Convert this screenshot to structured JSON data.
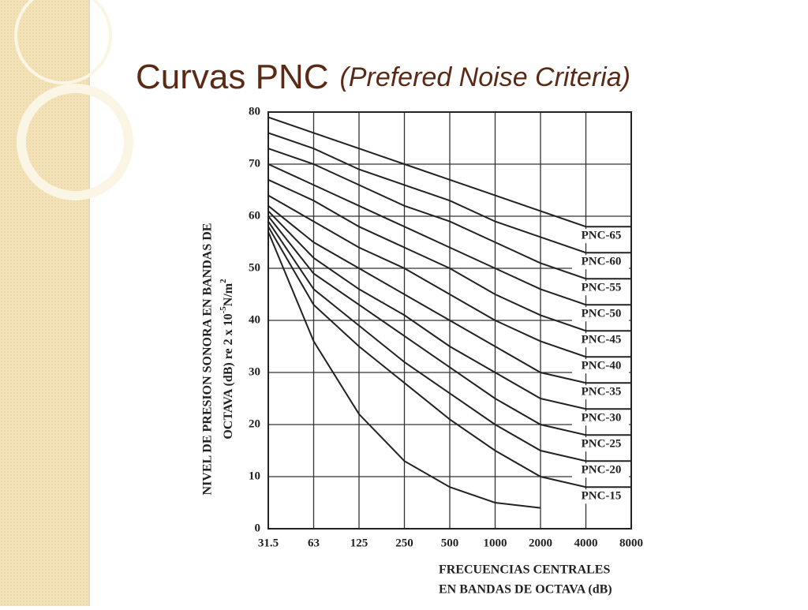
{
  "chart_data": {
    "type": "line",
    "title": "Curvas PNC",
    "subtitle": "(Prefered Noise Criteria)",
    "x_label": [
      "FRECUENCIAS CENTRALES",
      "EN BANDAS DE OCTAVA (dB)"
    ],
    "y_label": {
      "line1": "NIVEL DE PRESION SONORA EN BANDAS DE",
      "line2": "OCTAVA (dB) re 2 x 10",
      "exp1": "-5",
      "unit": "N/m",
      "exp2": "2"
    },
    "categories": [
      "31.5",
      "63",
      "125",
      "250",
      "500",
      "1000",
      "2000",
      "4000",
      "8000"
    ],
    "ylim": [
      0,
      80
    ],
    "yticks": [
      0,
      10,
      20,
      30,
      40,
      50,
      60,
      70,
      80
    ],
    "grid": true,
    "color": "#222222",
    "series": [
      {
        "name": "PNC-65",
        "values": [
          79,
          76,
          73,
          70,
          67,
          64,
          61,
          58,
          58
        ]
      },
      {
        "name": "PNC-60",
        "values": [
          76,
          73,
          69,
          66,
          63,
          59,
          56,
          53,
          53
        ]
      },
      {
        "name": "PNC-55",
        "values": [
          73,
          70,
          66,
          62,
          59,
          55,
          51,
          48,
          48
        ]
      },
      {
        "name": "PNC-50",
        "values": [
          70,
          66,
          62,
          58,
          54,
          50,
          46,
          43,
          43
        ]
      },
      {
        "name": "PNC-45",
        "values": [
          67,
          63,
          58,
          54,
          50,
          45,
          41,
          38,
          38
        ]
      },
      {
        "name": "PNC-40",
        "values": [
          64,
          59,
          54,
          50,
          45,
          40,
          36,
          33,
          33
        ]
      },
      {
        "name": "PNC-35",
        "values": [
          62,
          55,
          50,
          45,
          40,
          35,
          30,
          28,
          28
        ]
      },
      {
        "name": "PNC-30",
        "values": [
          61,
          52,
          46,
          41,
          35,
          30,
          25,
          23,
          23
        ]
      },
      {
        "name": "PNC-25",
        "values": [
          60,
          49,
          43,
          37,
          31,
          25,
          20,
          18,
          18
        ]
      },
      {
        "name": "PNC-20",
        "values": [
          59,
          46,
          39,
          32,
          26,
          20,
          15,
          13,
          13
        ]
      },
      {
        "name": "PNC-15",
        "values": [
          58,
          43,
          35,
          28,
          21,
          15,
          10,
          8,
          8
        ]
      },
      {
        "values": [
          57,
          36,
          22,
          13,
          8,
          5,
          4,
          null,
          null
        ]
      }
    ]
  }
}
